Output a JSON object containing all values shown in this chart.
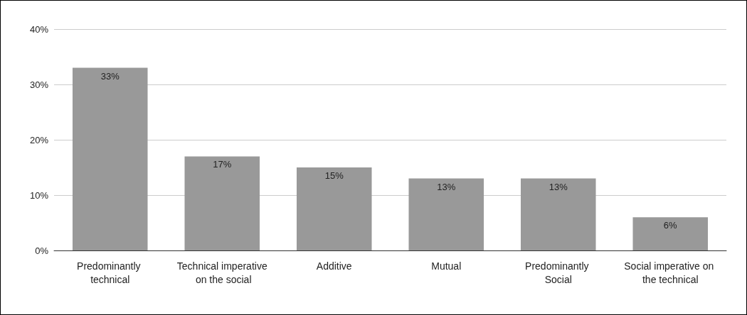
{
  "chart_data": {
    "type": "bar",
    "categories": [
      "Predominantly technical",
      "Technical imperative on the social",
      "Additive",
      "Mutual",
      "Predominantly Social",
      "Social imperative on the technical"
    ],
    "values": [
      33,
      17,
      15,
      13,
      13,
      6
    ],
    "value_labels": [
      "33%",
      "17%",
      "15%",
      "13%",
      "13%",
      "6%"
    ],
    "color": "#999999",
    "ylim": [
      0,
      40
    ],
    "yticks": [
      {
        "value": 0,
        "label": "0%"
      },
      {
        "value": 10,
        "label": "10%"
      },
      {
        "value": 20,
        "label": "20%"
      },
      {
        "value": 30,
        "label": "30%"
      },
      {
        "value": 40,
        "label": "40%"
      }
    ],
    "grid": "y"
  }
}
